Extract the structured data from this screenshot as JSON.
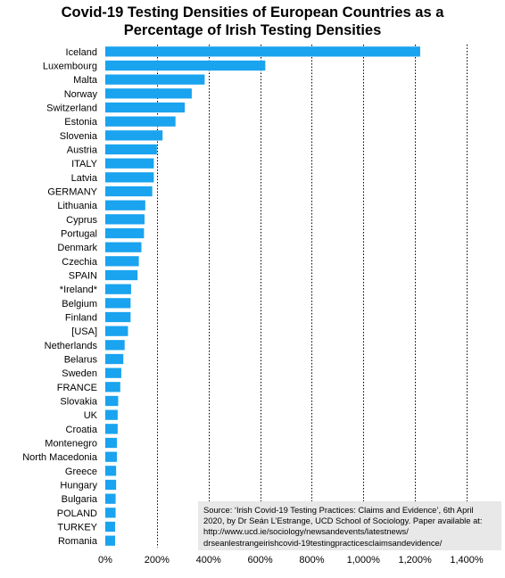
{
  "title_lines": [
    "Covid-19 Testing Densities of European Countries as a",
    "Percentage of Irish Testing Densities"
  ],
  "source_lines": [
    "Source: ‘Irish Covid-19 Testing Practices: Claims and Evidence’, 6th April",
    "2020, by Dr Seán L’Estrange, UCD School of Sociology. Paper available at:",
    "http://www.ucd.ie/sociology/newsandevents/latestnews/",
    "drseanlestrangeirishcovid-19testingpracticesclaimsandevidence/"
  ],
  "colors": {
    "bar": "#1aa3ef",
    "grid": "#000000"
  },
  "chart_data": {
    "type": "bar",
    "orientation": "horizontal",
    "title": "Covid-19 Testing Densities of European Countries as a Percentage of Irish Testing Densities",
    "categories": [
      "Iceland",
      "Luxembourg",
      "Malta",
      "Norway",
      "Switzerland",
      "Estonia",
      "Slovenia",
      "Austria",
      "ITALY",
      "Latvia",
      "GERMANY",
      "Lithuania",
      "Cyprus",
      "Portugal",
      "Denmark",
      "Czechia",
      "SPAIN",
      "*Ireland*",
      "Belgium",
      "Finland",
      "[USA]",
      "Netherlands",
      "Belarus",
      "Sweden",
      "FRANCE",
      "Slovakia",
      "UK",
      "Croatia",
      "Montenegro",
      "North Macedonia",
      "Greece",
      "Hungary",
      "Bulgaria",
      "POLAND",
      "TURKEY",
      "Romania"
    ],
    "values": [
      1220,
      620,
      385,
      335,
      308,
      272,
      222,
      200,
      188,
      188,
      182,
      155,
      152,
      150,
      140,
      130,
      125,
      100,
      98,
      98,
      88,
      75,
      70,
      62,
      58,
      50,
      48,
      48,
      45,
      45,
      42,
      42,
      40,
      40,
      38,
      38
    ],
    "xlim": [
      0,
      1400
    ],
    "xticks": [
      0,
      200,
      400,
      600,
      800,
      1000,
      1200,
      1400
    ],
    "xtick_labels": [
      "0%",
      "200%",
      "400%",
      "600%",
      "800%",
      "1,000%",
      "1,200%",
      "1,400%"
    ],
    "grid": "vertical dotted",
    "xlabel": "",
    "ylabel": ""
  }
}
